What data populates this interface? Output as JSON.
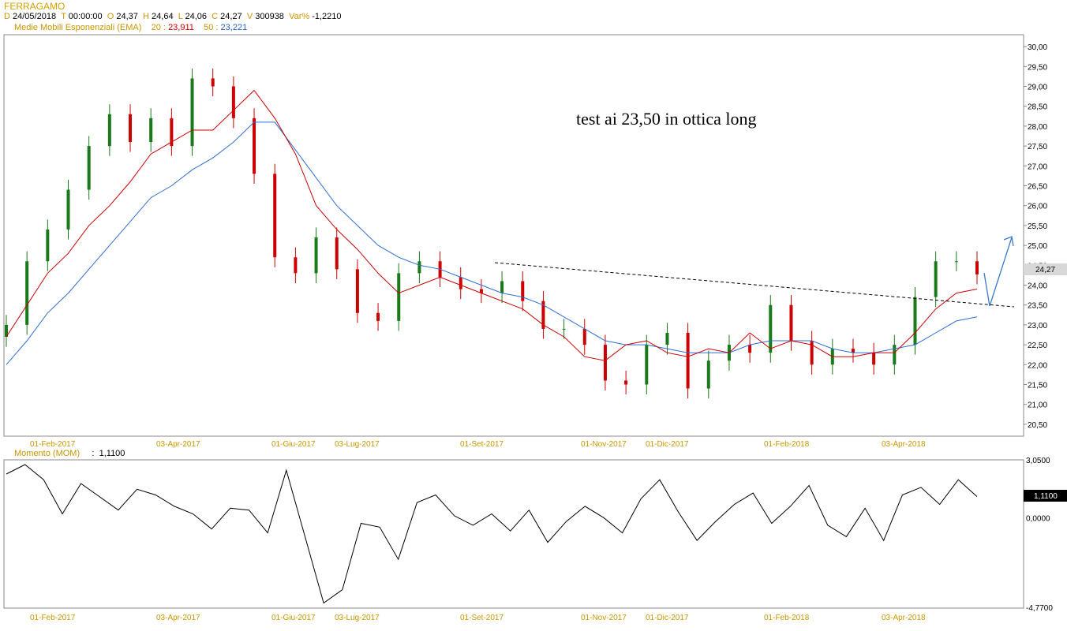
{
  "header": {
    "symbol": "FERRAGAMO",
    "d_label": "D",
    "date": "24/05/2018",
    "t_label": "T",
    "time": "00:00:00",
    "o_label": "O",
    "open": "24,37",
    "h_label": "H",
    "high": "24,64",
    "l_label": "L",
    "low": "24,06",
    "c_label": "C",
    "close": "24,27",
    "v_label": "V",
    "volume": "300938",
    "var_label": "Var%",
    "var": "-1,2210",
    "ema_title": "Medie Mobili Esponenziali (EMA)",
    "ema20_label": "20 :",
    "ema20": "23,911",
    "ema50_label": "50 :",
    "ema50": "23,221"
  },
  "momentum_header": {
    "label": "Momento (MOM)",
    "sep": ":",
    "value": "1,1100"
  },
  "annotation": "test ai 23,50 in ottica long",
  "colors": {
    "ema20": "#cc0000",
    "ema50": "#2f6fd0",
    "bull": "#1a7a1a",
    "bear": "#cc0000",
    "label": "#c89600",
    "trendline": "#000000",
    "arrow": "#3a7ac8"
  },
  "chart_data": [
    {
      "type": "candlestick",
      "title": "FERRAGAMO",
      "x_tick_labels": [
        "01-Feb-2017",
        "03-Apr-2017",
        "01-Giu-2017",
        "03-Lug-2017",
        "01-Set-2017",
        "01-Nov-2017",
        "01-Dic-2017",
        "01-Feb-2018",
        "03-Apr-2018"
      ],
      "y_tick_labels": [
        "30,00",
        "29,50",
        "29,00",
        "28,50",
        "28,00",
        "27,50",
        "27,00",
        "26,50",
        "26,00",
        "25,50",
        "25,00",
        "24,50",
        "24,00",
        "23,50",
        "23,00",
        "22,50",
        "22,00",
        "21,50",
        "21,00",
        "20,50"
      ],
      "ylim": [
        20.2,
        30.3
      ],
      "last_price_label": "24,27",
      "last_price": 24.27,
      "series": [
        {
          "name": "20",
          "values": [
            22.7,
            23.5,
            24.3,
            24.8,
            25.5,
            26.0,
            26.6,
            27.3,
            27.6,
            27.9,
            27.9,
            28.4,
            28.9,
            28.2,
            27.3,
            26.0,
            25.4,
            24.9,
            24.3,
            23.8,
            24.0,
            24.2,
            24.0,
            23.8,
            23.6,
            23.4,
            23.0,
            22.7,
            22.2,
            22.1,
            22.5,
            22.6,
            22.3,
            22.2,
            22.4,
            22.3,
            22.8,
            22.4,
            22.6,
            22.5,
            22.2,
            22.2,
            22.3,
            22.3,
            22.8,
            23.4,
            23.8,
            23.9
          ]
        },
        {
          "name": "50",
          "values": [
            22.0,
            22.6,
            23.3,
            23.8,
            24.4,
            25.0,
            25.6,
            26.2,
            26.5,
            26.9,
            27.2,
            27.6,
            28.1,
            28.1,
            27.4,
            26.7,
            26.0,
            25.5,
            25.0,
            24.7,
            24.5,
            24.4,
            24.2,
            24.0,
            23.8,
            23.7,
            23.5,
            23.2,
            22.9,
            22.6,
            22.5,
            22.5,
            22.4,
            22.3,
            22.3,
            22.3,
            22.5,
            22.6,
            22.6,
            22.6,
            22.4,
            22.3,
            22.3,
            22.4,
            22.5,
            22.8,
            23.1,
            23.2
          ]
        },
        {
          "name": "close",
          "values": [
            23.0,
            24.6,
            25.4,
            26.4,
            27.5,
            28.3,
            27.6,
            28.2,
            27.5,
            29.2,
            29.0,
            28.2,
            26.8,
            24.7,
            24.3,
            25.2,
            24.4,
            23.3,
            23.1,
            24.3,
            24.6,
            24.2,
            23.9,
            23.8,
            24.1,
            23.6,
            22.9,
            22.9,
            22.5,
            21.6,
            21.5,
            22.5,
            22.8,
            21.4,
            22.1,
            22.5,
            22.3,
            23.5,
            22.6,
            22.0,
            22.4,
            22.3,
            22.0,
            22.5,
            23.7,
            24.6,
            24.6,
            24.27
          ]
        }
      ]
    },
    {
      "type": "line",
      "title": "Momento (MOM)",
      "y_tick_labels": [
        "3,0500",
        "0,0000",
        "-4,7700"
      ],
      "ylim": [
        -4.77,
        3.05
      ],
      "last_value_label": "1,1100",
      "values": [
        2.3,
        2.8,
        2.0,
        0.2,
        1.8,
        1.1,
        0.4,
        1.5,
        1.2,
        0.6,
        0.2,
        -0.6,
        0.5,
        0.4,
        -0.8,
        2.5,
        -1.0,
        -4.5,
        -3.8,
        -0.3,
        -0.5,
        -2.2,
        0.8,
        1.2,
        0.1,
        -0.4,
        0.2,
        -0.7,
        0.4,
        -1.3,
        -0.2,
        0.6,
        0.0,
        -0.8,
        1.0,
        2.0,
        0.3,
        -1.2,
        -0.2,
        0.7,
        1.3,
        -0.3,
        0.6,
        1.7,
        -0.4,
        -1.0,
        0.5,
        -1.2,
        1.2,
        1.6,
        0.7,
        2.0,
        1.11
      ]
    }
  ]
}
